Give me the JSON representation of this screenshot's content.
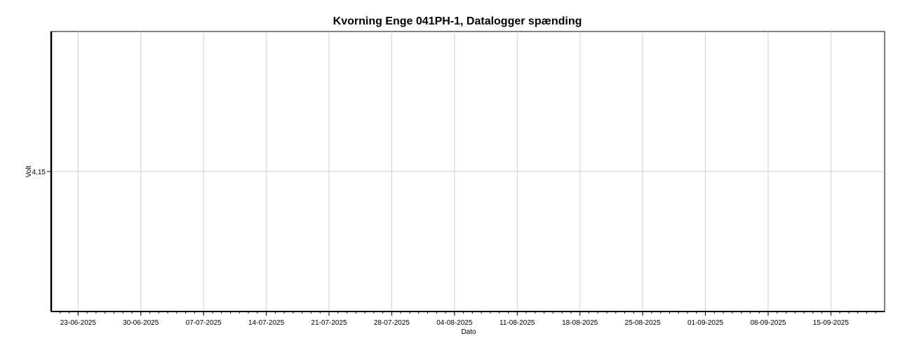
{
  "chart_data": {
    "type": "line",
    "title": "Kvorning Enge 041PH-1, Datalogger spænding",
    "xlabel": "Dato",
    "ylabel": "Volt",
    "x_tick_labels": [
      "23-06-2025",
      "30-06-2025",
      "07-07-2025",
      "14-07-2025",
      "21-07-2025",
      "28-07-2025",
      "04-08-2025",
      "11-08-2025",
      "18-08-2025",
      "25-08-2025",
      "01-09-2025",
      "08-09-2025",
      "15-09-2025"
    ],
    "y_tick_labels": [
      "4,15"
    ],
    "y_ticks": [
      4.15
    ],
    "xlim": [
      "2025-06-20",
      "2025-09-21"
    ],
    "ylim": [
      4.14,
      4.16
    ],
    "grid": true,
    "legend": "none",
    "series": []
  }
}
